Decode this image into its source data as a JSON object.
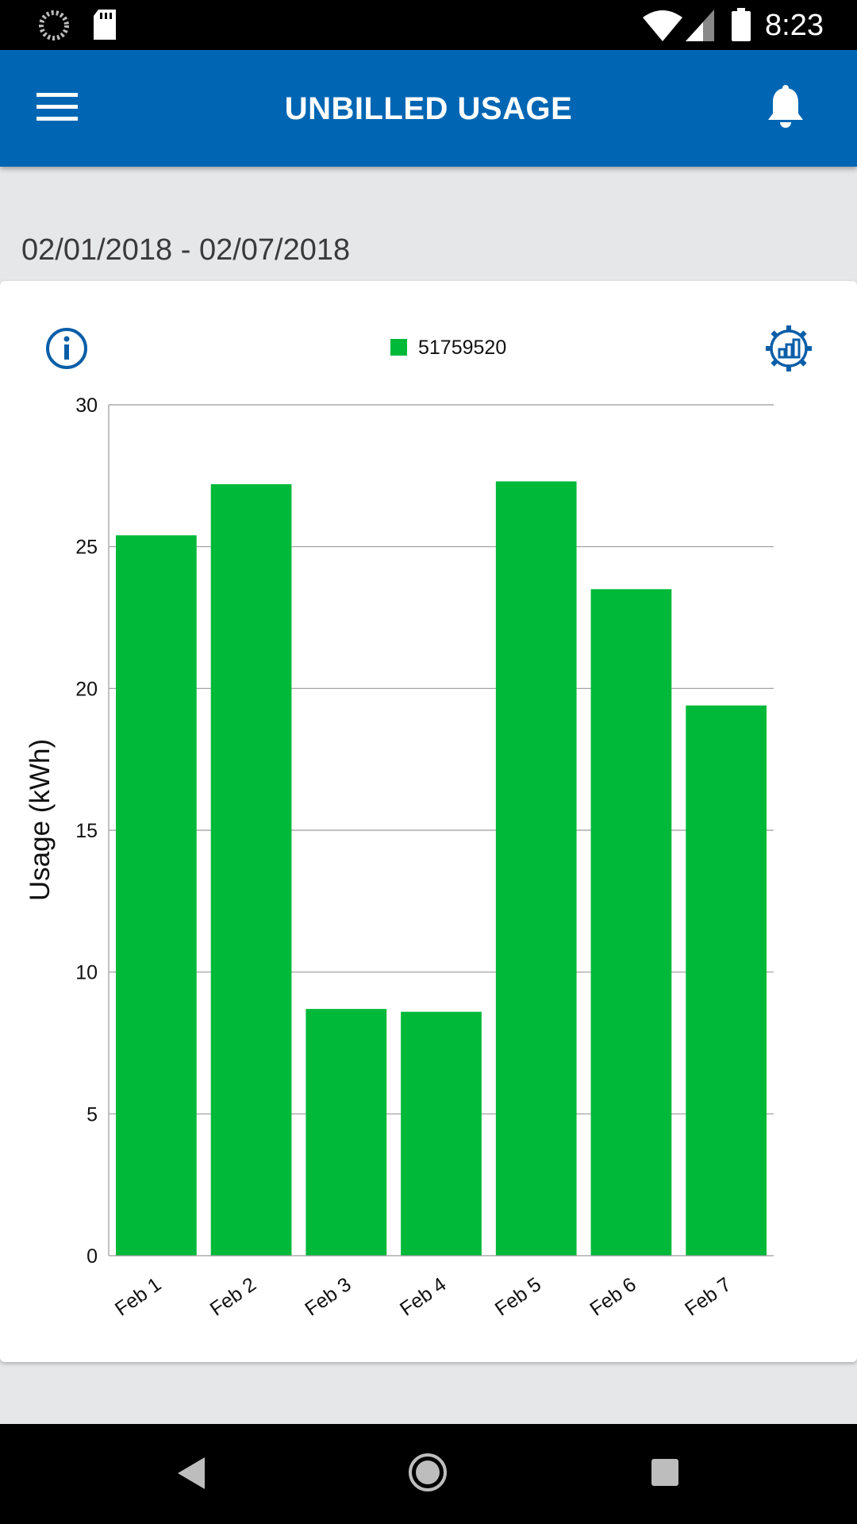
{
  "status_bar": {
    "time": "8:23",
    "icons": [
      "loading-icon",
      "sd-card-icon",
      "wifi-icon",
      "cell-signal-icon",
      "battery-icon"
    ]
  },
  "app_bar": {
    "title": "UNBILLED USAGE",
    "menu_icon": "hamburger-menu-icon",
    "notification_icon": "bell-icon"
  },
  "date_range": "02/01/2018 - 02/07/2018",
  "colors": {
    "app_bar": "#0066b3",
    "bar": "#00b939",
    "icon_blue": "#0a5ea8"
  },
  "chart_data": {
    "type": "bar",
    "categories": [
      "Feb 1",
      "Feb 2",
      "Feb 3",
      "Feb 4",
      "Feb 5",
      "Feb 6",
      "Feb 7"
    ],
    "series": [
      {
        "name": "51759520",
        "values": [
          25.4,
          27.2,
          8.7,
          8.6,
          27.3,
          23.5,
          19.4
        ]
      }
    ],
    "ylabel": "Usage (kWh)",
    "ylim": [
      0,
      30
    ],
    "yticks": [
      0,
      5,
      10,
      15,
      20,
      25,
      30
    ],
    "grid": true,
    "legend": "top-center"
  },
  "nav_bar": {
    "icons": [
      "back-icon",
      "home-icon",
      "recents-icon"
    ]
  }
}
